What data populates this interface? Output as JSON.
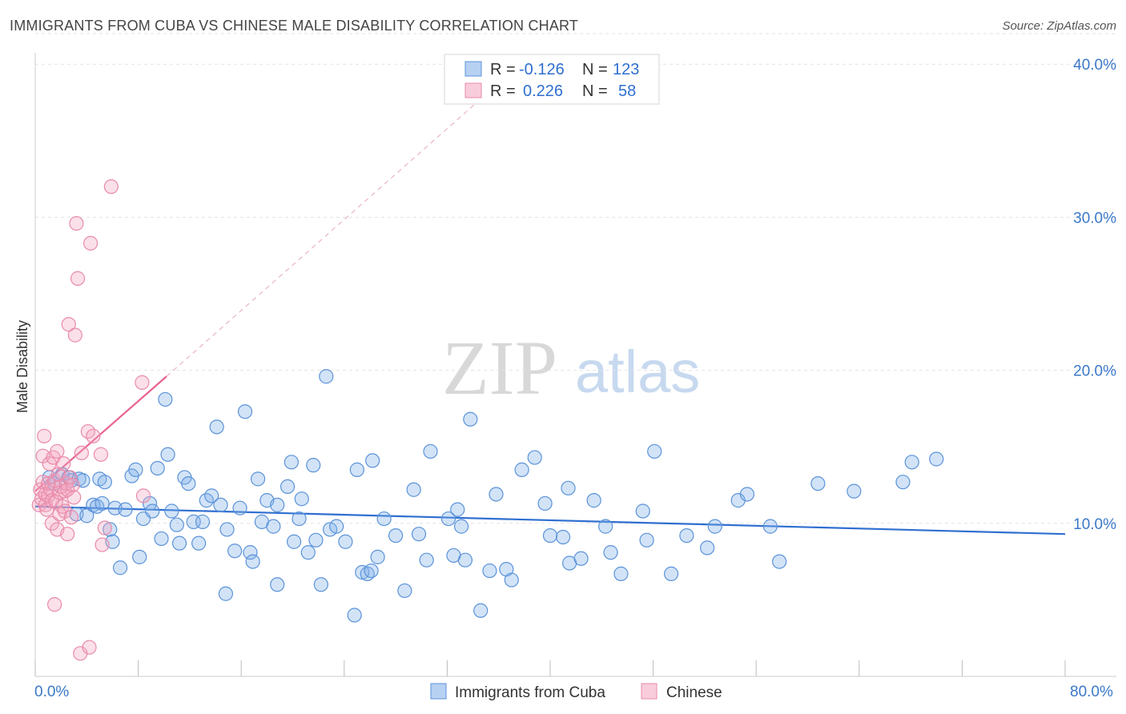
{
  "header": {
    "title": "IMMIGRANTS FROM CUBA VS CHINESE MALE DISABILITY CORRELATION CHART",
    "source": "Source: ZipAtlas.com"
  },
  "watermark": {
    "left": "ZIP",
    "right": "atlas"
  },
  "legend": {
    "rows": [
      {
        "r_label": "R =",
        "r_value": "-0.126",
        "n_label": "N =",
        "n_value": "123",
        "color": "#7eaee8"
      },
      {
        "r_label": "R =",
        "r_value": "0.226",
        "n_label": "N =",
        "n_value": "58",
        "color": "#f4a6bf"
      }
    ]
  },
  "chart_data": {
    "type": "scatter",
    "title": "IMMIGRANTS FROM CUBA VS CHINESE MALE DISABILITY CORRELATION CHART",
    "xlabel": "",
    "ylabel": "Male Disability",
    "xlim": [
      0,
      80
    ],
    "ylim": [
      0,
      42
    ],
    "x_tick_labels": [
      "0.0%",
      "80.0%"
    ],
    "y_ticks": [
      10,
      20,
      30,
      40
    ],
    "y_tick_labels": [
      "10.0%",
      "20.0%",
      "30.0%",
      "40.0%"
    ],
    "grid": true,
    "legend_position": "top-center",
    "series": [
      {
        "name": "Immigrants from Cuba",
        "color": "#7eaee8",
        "stroke": "#5b93d9",
        "trend": {
          "x": [
            0,
            80
          ],
          "y": [
            11.1,
            9.3
          ],
          "color": "#2f6fd0",
          "style": "solid"
        },
        "points": [
          [
            1.1,
            13.0
          ],
          [
            1.5,
            12.6
          ],
          [
            2.1,
            13.2
          ],
          [
            2.6,
            13.0
          ],
          [
            2.8,
            12.8
          ],
          [
            3.2,
            10.6
          ],
          [
            3.4,
            12.9
          ],
          [
            3.7,
            12.8
          ],
          [
            4.0,
            10.5
          ],
          [
            4.5,
            11.2
          ],
          [
            4.8,
            11.1
          ],
          [
            5.0,
            12.9
          ],
          [
            5.2,
            11.3
          ],
          [
            5.4,
            12.7
          ],
          [
            5.8,
            9.6
          ],
          [
            6.0,
            8.8
          ],
          [
            6.2,
            11.0
          ],
          [
            6.6,
            7.1
          ],
          [
            7.0,
            10.9
          ],
          [
            7.5,
            13.1
          ],
          [
            7.8,
            13.5
          ],
          [
            8.1,
            7.8
          ],
          [
            8.4,
            10.3
          ],
          [
            8.9,
            11.3
          ],
          [
            9.1,
            10.8
          ],
          [
            9.5,
            13.6
          ],
          [
            9.8,
            9.0
          ],
          [
            10.1,
            18.1
          ],
          [
            10.3,
            14.5
          ],
          [
            10.6,
            10.8
          ],
          [
            11.0,
            9.9
          ],
          [
            11.2,
            8.7
          ],
          [
            11.6,
            13.0
          ],
          [
            11.9,
            12.6
          ],
          [
            12.3,
            10.1
          ],
          [
            12.7,
            8.7
          ],
          [
            13.0,
            10.1
          ],
          [
            13.3,
            11.5
          ],
          [
            13.7,
            11.8
          ],
          [
            14.1,
            16.3
          ],
          [
            14.4,
            11.2
          ],
          [
            14.8,
            5.4
          ],
          [
            14.9,
            9.6
          ],
          [
            15.5,
            8.2
          ],
          [
            15.9,
            11.0
          ],
          [
            16.3,
            17.3
          ],
          [
            16.7,
            8.1
          ],
          [
            16.9,
            7.5
          ],
          [
            17.3,
            12.9
          ],
          [
            17.6,
            10.1
          ],
          [
            18.0,
            11.5
          ],
          [
            18.5,
            9.8
          ],
          [
            18.8,
            11.2
          ],
          [
            18.8,
            6.0
          ],
          [
            19.6,
            12.4
          ],
          [
            19.9,
            14.0
          ],
          [
            20.1,
            8.8
          ],
          [
            20.5,
            10.3
          ],
          [
            20.7,
            11.6
          ],
          [
            21.2,
            8.1
          ],
          [
            21.6,
            13.8
          ],
          [
            21.8,
            8.9
          ],
          [
            22.2,
            6.0
          ],
          [
            22.6,
            19.6
          ],
          [
            22.9,
            9.6
          ],
          [
            23.4,
            9.8
          ],
          [
            24.1,
            8.8
          ],
          [
            24.8,
            4.0
          ],
          [
            25.0,
            13.5
          ],
          [
            25.4,
            6.8
          ],
          [
            25.8,
            6.7
          ],
          [
            26.1,
            6.9
          ],
          [
            26.2,
            14.1
          ],
          [
            26.6,
            7.8
          ],
          [
            27.1,
            10.3
          ],
          [
            28.0,
            9.2
          ],
          [
            28.7,
            5.6
          ],
          [
            29.4,
            12.2
          ],
          [
            29.8,
            9.3
          ],
          [
            30.4,
            7.6
          ],
          [
            30.7,
            14.7
          ],
          [
            32.1,
            10.3
          ],
          [
            32.5,
            7.9
          ],
          [
            32.8,
            10.9
          ],
          [
            33.1,
            9.8
          ],
          [
            33.4,
            7.6
          ],
          [
            33.8,
            16.8
          ],
          [
            34.6,
            4.3
          ],
          [
            35.3,
            6.9
          ],
          [
            35.8,
            11.9
          ],
          [
            36.6,
            7.0
          ],
          [
            37.0,
            6.3
          ],
          [
            37.8,
            13.5
          ],
          [
            38.8,
            14.3
          ],
          [
            39.6,
            11.3
          ],
          [
            40.0,
            9.2
          ],
          [
            41.0,
            9.1
          ],
          [
            41.4,
            12.3
          ],
          [
            41.5,
            7.4
          ],
          [
            42.4,
            7.7
          ],
          [
            43.4,
            11.5
          ],
          [
            44.3,
            9.8
          ],
          [
            44.7,
            8.1
          ],
          [
            45.5,
            6.7
          ],
          [
            47.2,
            10.8
          ],
          [
            47.5,
            8.9
          ],
          [
            48.1,
            14.7
          ],
          [
            49.4,
            6.7
          ],
          [
            50.6,
            9.2
          ],
          [
            52.2,
            8.4
          ],
          [
            52.8,
            9.8
          ],
          [
            54.6,
            11.5
          ],
          [
            55.3,
            11.9
          ],
          [
            57.1,
            9.8
          ],
          [
            57.8,
            7.5
          ],
          [
            60.8,
            12.6
          ],
          [
            63.6,
            12.1
          ],
          [
            67.4,
            12.7
          ],
          [
            68.1,
            14.0
          ],
          [
            70.0,
            14.2
          ]
        ]
      },
      {
        "name": "Chinese",
        "color": "#f4a6bf",
        "stroke": "#e98aaa",
        "trend": {
          "x": [
            0,
            10.2
          ],
          "y": [
            12.1,
            19.6
          ],
          "color": "#e8628e",
          "style": "solid"
        },
        "trend_extension": {
          "x": [
            10.2,
            37.0
          ],
          "y": [
            19.6,
            39.5
          ],
          "style": "dashed"
        },
        "points": [
          [
            0.3,
            11.2
          ],
          [
            0.4,
            12.2
          ],
          [
            0.5,
            11.6
          ],
          [
            0.6,
            12.7
          ],
          [
            0.6,
            14.4
          ],
          [
            0.7,
            15.7
          ],
          [
            0.8,
            11.9
          ],
          [
            0.8,
            11.2
          ],
          [
            0.9,
            10.9
          ],
          [
            1.0,
            12.6
          ],
          [
            1.0,
            11.8
          ],
          [
            1.1,
            13.9
          ],
          [
            1.2,
            12.2
          ],
          [
            1.3,
            11.5
          ],
          [
            1.3,
            10.0
          ],
          [
            1.4,
            14.3
          ],
          [
            1.5,
            4.7
          ],
          [
            1.5,
            12.8
          ],
          [
            1.6,
            11.4
          ],
          [
            1.7,
            14.7
          ],
          [
            1.7,
            9.6
          ],
          [
            1.8,
            13.2
          ],
          [
            1.9,
            12.0
          ],
          [
            1.9,
            10.6
          ],
          [
            2.0,
            12.4
          ],
          [
            2.1,
            11.1
          ],
          [
            2.2,
            13.9
          ],
          [
            2.3,
            12.1
          ],
          [
            2.3,
            10.8
          ],
          [
            2.4,
            12.6
          ],
          [
            2.5,
            9.3
          ],
          [
            2.5,
            12.2
          ],
          [
            2.6,
            23.0
          ],
          [
            2.7,
            13.0
          ],
          [
            2.8,
            10.4
          ],
          [
            2.9,
            12.5
          ],
          [
            3.0,
            11.7
          ],
          [
            3.1,
            22.3
          ],
          [
            3.2,
            29.6
          ],
          [
            3.3,
            26.0
          ],
          [
            3.5,
            1.5
          ],
          [
            3.6,
            14.6
          ],
          [
            4.1,
            16.0
          ],
          [
            4.2,
            1.9
          ],
          [
            4.3,
            28.3
          ],
          [
            4.5,
            15.7
          ],
          [
            5.1,
            14.5
          ],
          [
            5.2,
            8.6
          ],
          [
            5.4,
            9.7
          ],
          [
            5.9,
            32.0
          ],
          [
            8.3,
            19.2
          ],
          [
            8.4,
            11.8
          ]
        ]
      }
    ]
  },
  "bottom_legend": [
    {
      "label": "Immigrants from Cuba",
      "color": "#a9c8ef",
      "stroke": "#5b93d9"
    },
    {
      "label": "Chinese",
      "color": "#f8c6d6",
      "stroke": "#e98aaa"
    }
  ]
}
